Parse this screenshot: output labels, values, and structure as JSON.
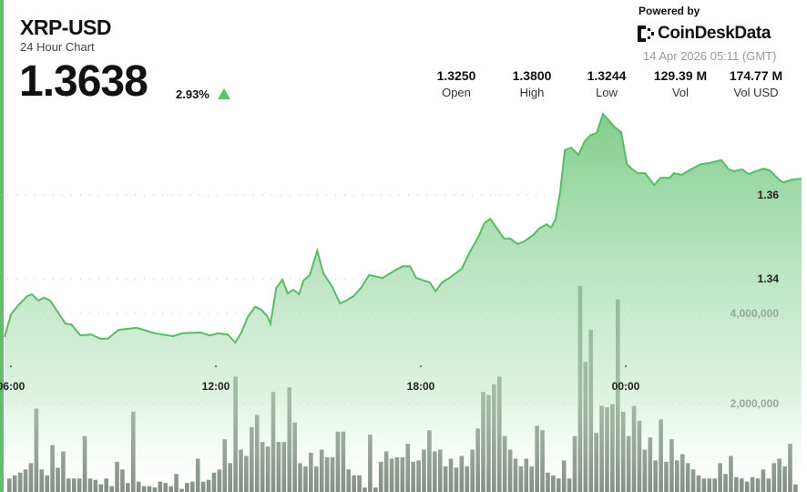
{
  "header": {
    "title": "XRP-USD",
    "subtitle": "24 Hour Chart",
    "price": "1.3638",
    "change": "2.93%",
    "change_direction": "up",
    "powered_by": "Powered by",
    "brand": "CoinDeskData",
    "timestamp": "14 Apr 2026 05:11 (GMT)",
    "stats": [
      {
        "value": "1.3250",
        "label": "Open"
      },
      {
        "value": "1.3800",
        "label": "High"
      },
      {
        "value": "1.3244",
        "label": "Low"
      },
      {
        "value": "129.39 M",
        "label": "Vol"
      },
      {
        "value": "174.77 M",
        "label": "Vol USD"
      }
    ]
  },
  "colors": {
    "accent": "#5fbf6d",
    "line": "#5cb86a",
    "volume": "#5f6b5f"
  },
  "chart_data": {
    "type": "line+bar",
    "x_ticks": [
      "06:00",
      "12:00",
      "18:00",
      "00:00"
    ],
    "price_ticks": [
      "1.34",
      "1.36"
    ],
    "volume_ticks": [
      "2,000,000",
      "4,000,000"
    ],
    "grid": true,
    "price_series": [
      [
        "05:49",
        1.3261
      ],
      [
        "06:00",
        1.3315
      ],
      [
        "06:13",
        1.3337
      ],
      [
        "06:29",
        1.3359
      ],
      [
        "06:37",
        1.3363
      ],
      [
        "06:48",
        1.3348
      ],
      [
        "06:58",
        1.3355
      ],
      [
        "07:09",
        1.3348
      ],
      [
        "07:25",
        1.3315
      ],
      [
        "07:36",
        1.3293
      ],
      [
        "07:46",
        1.3291
      ],
      [
        "08:02",
        1.3265
      ],
      [
        "08:21",
        1.3267
      ],
      [
        "08:37",
        1.3257
      ],
      [
        "08:50",
        1.3257
      ],
      [
        "09:09",
        1.3278
      ],
      [
        "09:41",
        1.3283
      ],
      [
        "10:13",
        1.327
      ],
      [
        "10:45",
        1.3263
      ],
      [
        "11:01",
        1.327
      ],
      [
        "11:33",
        1.3272
      ],
      [
        "11:49",
        1.3265
      ],
      [
        "12:05",
        1.327
      ],
      [
        "12:21",
        1.3267
      ],
      [
        "12:34",
        1.3248
      ],
      [
        "12:45",
        1.3272
      ],
      [
        "12:56",
        1.3309
      ],
      [
        "13:09",
        1.3333
      ],
      [
        "13:20",
        1.3326
      ],
      [
        "13:30",
        1.3311
      ],
      [
        "13:36",
        1.3293
      ],
      [
        "13:46",
        1.3378
      ],
      [
        "13:57",
        1.3398
      ],
      [
        "14:06",
        1.3365
      ],
      [
        "14:16",
        1.3374
      ],
      [
        "14:26",
        1.3363
      ],
      [
        "14:34",
        1.3396
      ],
      [
        "14:45",
        1.3409
      ],
      [
        "14:58",
        1.3467
      ],
      [
        "15:09",
        1.3413
      ],
      [
        "15:25",
        1.338
      ],
      [
        "15:38",
        1.3341
      ],
      [
        "15:49",
        1.3348
      ],
      [
        "16:02",
        1.3359
      ],
      [
        "16:16",
        1.338
      ],
      [
        "16:29",
        1.3409
      ],
      [
        "16:53",
        1.3402
      ],
      [
        "17:17",
        1.3422
      ],
      [
        "17:28",
        1.343
      ],
      [
        "17:41",
        1.343
      ],
      [
        "17:52",
        1.3402
      ],
      [
        "18:05",
        1.3396
      ],
      [
        "18:16",
        1.3391
      ],
      [
        "18:26",
        1.337
      ],
      [
        "18:37",
        1.3391
      ],
      [
        "18:50",
        1.3402
      ],
      [
        "19:01",
        1.3413
      ],
      [
        "19:12",
        1.3424
      ],
      [
        "19:25",
        1.3461
      ],
      [
        "19:41",
        1.35
      ],
      [
        "19:52",
        1.3533
      ],
      [
        "20:02",
        1.3543
      ],
      [
        "20:13",
        1.3522
      ],
      [
        "20:26",
        1.3496
      ],
      [
        "20:37",
        1.3496
      ],
      [
        "20:50",
        1.3483
      ],
      [
        "21:01",
        1.3489
      ],
      [
        "21:17",
        1.3504
      ],
      [
        "21:28",
        1.352
      ],
      [
        "21:41",
        1.353
      ],
      [
        "21:49",
        1.3522
      ],
      [
        "21:57",
        1.3543
      ],
      [
        "22:05",
        1.3609
      ],
      [
        "22:13",
        1.3707
      ],
      [
        "22:24",
        1.3713
      ],
      [
        "22:37",
        1.3696
      ],
      [
        "22:48",
        1.3728
      ],
      [
        "22:58",
        1.3743
      ],
      [
        "23:09",
        1.3748
      ],
      [
        "23:20",
        1.3793
      ],
      [
        "23:30",
        1.3778
      ],
      [
        "23:41",
        1.3761
      ],
      [
        "23:52",
        1.375
      ],
      [
        "00:02",
        1.3674
      ],
      [
        "00:10",
        1.3663
      ],
      [
        "00:21",
        1.3652
      ],
      [
        "00:34",
        1.3652
      ],
      [
        "00:50",
        1.3624
      ],
      [
        "01:01",
        1.3641
      ],
      [
        "01:17",
        1.3641
      ],
      [
        "01:25",
        1.3652
      ],
      [
        "01:38",
        1.3648
      ],
      [
        "01:57",
        1.3663
      ],
      [
        "02:13",
        1.3674
      ],
      [
        "02:26",
        1.3676
      ],
      [
        "02:48",
        1.3683
      ],
      [
        "03:01",
        1.3661
      ],
      [
        "03:10",
        1.3657
      ],
      [
        "03:25",
        1.3661
      ],
      [
        "03:36",
        1.365
      ],
      [
        "03:49",
        1.3657
      ],
      [
        "04:02",
        1.3663
      ],
      [
        "04:13",
        1.3659
      ],
      [
        "04:29",
        1.3637
      ],
      [
        "04:37",
        1.363
      ],
      [
        "04:53",
        1.3637
      ],
      [
        "05:09",
        1.3639
      ]
    ],
    "volume_series": [
      340000,
      410000,
      470000,
      540000,
      680000,
      1890000,
      540000,
      410000,
      1080000,
      580000,
      940000,
      340000,
      340000,
      340000,
      1280000,
      340000,
      310000,
      210000,
      340000,
      170000,
      710000,
      540000,
      240000,
      1820000,
      270000,
      170000,
      170000,
      140000,
      270000,
      240000,
      170000,
      440000,
      110000,
      240000,
      270000,
      780000,
      270000,
      310000,
      470000,
      540000,
      1210000,
      680000,
      2600000,
      980000,
      840000,
      1480000,
      1750000,
      1150000,
      1050000,
      2260000,
      1150000,
      1150000,
      2360000,
      1580000,
      680000,
      610000,
      910000,
      610000,
      980000,
      810000,
      810000,
      1380000,
      1380000,
      540000,
      410000,
      410000,
      140000,
      1310000,
      140000,
      710000,
      940000,
      780000,
      810000,
      810000,
      1110000,
      710000,
      740000,
      980000,
      1410000,
      940000,
      980000,
      610000,
      780000,
      580000,
      840000,
      610000,
      980000,
      1450000,
      2260000,
      2190000,
      2430000,
      2600000,
      1280000,
      980000,
      780000,
      610000,
      780000,
      610000,
      1510000,
      1410000,
      470000,
      410000,
      340000,
      740000,
      340000,
      1280000,
      4610000,
      2930000,
      3640000,
      1350000,
      1950000,
      1920000,
      1990000,
      4310000,
      1820000,
      1280000,
      1950000,
      1620000,
      980000,
      1250000,
      740000,
      1650000,
      710000,
      1210000,
      740000,
      880000,
      680000,
      540000,
      410000,
      340000,
      340000,
      340000,
      680000,
      440000,
      840000,
      370000,
      340000,
      270000,
      370000,
      340000,
      540000,
      340000,
      680000,
      780000,
      610000,
      1110000,
      210000
    ]
  }
}
